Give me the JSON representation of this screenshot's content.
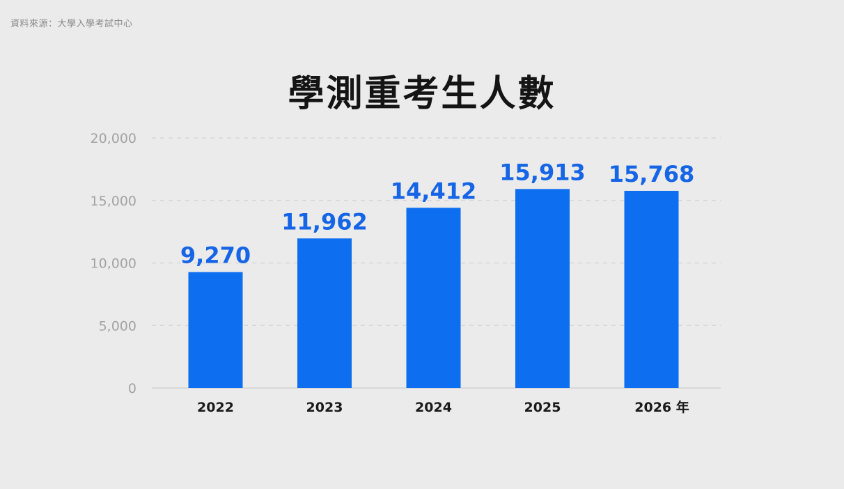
{
  "source_text": "資料來源：大學入學考試中心",
  "chart_data": {
    "type": "bar",
    "title": "學測重考生人數",
    "categories": [
      "2022",
      "2023",
      "2024",
      "2025",
      "2026 年"
    ],
    "values": [
      9270,
      11962,
      14412,
      15913,
      15768
    ],
    "value_labels": [
      "9,270",
      "11,962",
      "14,412",
      "15,913",
      "15,768"
    ],
    "y_ticks": [
      0,
      5000,
      10000,
      15000,
      20000
    ],
    "y_tick_labels": [
      "0",
      "5,000",
      "10,000",
      "15,000",
      "20,000"
    ],
    "ylim": [
      0,
      20000
    ],
    "xlabel": "",
    "ylabel": "",
    "grid": true,
    "legend": "none",
    "colors": {
      "bar": "#0d6ef0",
      "value_label": "#1565e6",
      "grid": "#d2d2d2",
      "tick_label": "#a3a3a3",
      "category_label": "#1a1a1a"
    }
  }
}
